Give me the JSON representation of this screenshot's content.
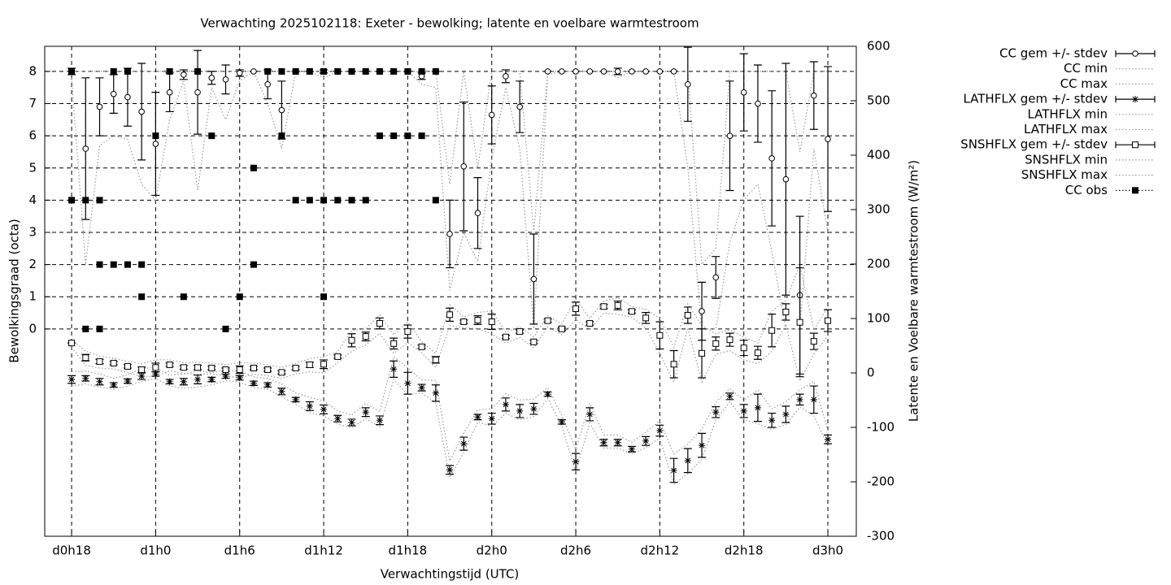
{
  "chart_data": {
    "type": "errorbar",
    "title": "Verwachting 2025102118: Exeter - bewolking; latente en voelbare warmtestroom",
    "x_label": "Verwachtingstijd (UTC)",
    "y_label": "Bewolkingsgraad (octa)",
    "y2_label": "Latente en Voelbare warmtestroom (W/m²)",
    "xlim": [
      16.08,
      74.03
    ],
    "ylim": [
      -6.44,
      8.78
    ],
    "y2lim": [
      -300,
      600
    ],
    "xticks": [
      {
        "value": 18,
        "label": "d0h18"
      },
      {
        "value": 24,
        "label": "d1h0"
      },
      {
        "value": 30,
        "label": "d1h6"
      },
      {
        "value": 36,
        "label": "d1h12"
      },
      {
        "value": 42,
        "label": "d1h18"
      },
      {
        "value": 48,
        "label": "d2h0"
      },
      {
        "value": 54,
        "label": "d2h6"
      },
      {
        "value": 60,
        "label": "d2h12"
      },
      {
        "value": 66,
        "label": "d2h18"
      },
      {
        "value": 72,
        "label": "d3h0"
      }
    ],
    "yticks": [
      0,
      1,
      2,
      3,
      4,
      5,
      6,
      7,
      8
    ],
    "y2ticks": [
      -300,
      -200,
      -100,
      0,
      100,
      200,
      300,
      400,
      500,
      600
    ],
    "grid": true,
    "legend": "outside-right",
    "x": [
      18,
      19,
      20,
      21,
      22,
      23,
      24,
      25,
      26,
      27,
      28,
      29,
      30,
      31,
      32,
      33,
      34,
      35,
      36,
      37,
      38,
      39,
      40,
      41,
      42,
      43,
      44,
      45,
      46,
      47,
      48,
      49,
      50,
      51,
      52,
      53,
      54,
      55,
      56,
      57,
      58,
      59,
      60,
      61,
      62,
      63,
      64,
      65,
      66,
      67,
      68,
      69,
      70,
      71,
      72
    ],
    "series": [
      {
        "name": "CC gem +/- stdev",
        "axis": "y",
        "style": "errorbars",
        "marker": "circle",
        "color": "#000000",
        "values": [
          8,
          5.6,
          6.9,
          7.3,
          7.2,
          6.75,
          5.75,
          7.35,
          7.9,
          7.35,
          7.8,
          7.75,
          7.95,
          8,
          7.6,
          6.8,
          8,
          8,
          8,
          8,
          8,
          8,
          8,
          8,
          8,
          7.85,
          8,
          2.95,
          5.05,
          3.6,
          6.65,
          7.85,
          6.9,
          1.55,
          8,
          8,
          8,
          8,
          8,
          8,
          8,
          8,
          8,
          8,
          7.6,
          0.55,
          1.6,
          6,
          7.35,
          7,
          5.3,
          4.65,
          1.05,
          7.25,
          5.9
        ],
        "errors": [
          0.1,
          2.2,
          0.9,
          0.6,
          0.9,
          1.5,
          1.6,
          0.6,
          0.15,
          1.3,
          0.2,
          0.45,
          0.1,
          0,
          0.45,
          0.9,
          0,
          0,
          0.05,
          0,
          0,
          0,
          0,
          0,
          0,
          0.1,
          0,
          1.05,
          2,
          1.1,
          0.9,
          0.2,
          0.8,
          1.4,
          0,
          0,
          0,
          0,
          0,
          0.1,
          0,
          0,
          0,
          0,
          1.15,
          0.9,
          0.65,
          1.7,
          1.2,
          1.2,
          2.1,
          3.6,
          2.45,
          1.05,
          2.25
        ]
      },
      {
        "name": "CC min",
        "axis": "y",
        "style": "line",
        "marker": "none",
        "color": "#9a9a9a",
        "values": [
          7.8,
          2,
          5.7,
          6,
          5.9,
          4.5,
          4,
          6.5,
          7.7,
          4.3,
          7.5,
          6.5,
          7.7,
          8,
          7,
          5.6,
          8,
          8,
          7.8,
          8,
          8,
          8,
          8,
          8,
          8,
          7.6,
          7.5,
          1.2,
          3,
          2.1,
          5.3,
          7.5,
          5.6,
          0,
          7.9,
          8,
          8,
          8,
          8,
          7.8,
          8,
          8,
          8,
          8,
          5,
          0,
          0,
          2.7,
          4,
          4.5,
          2.4,
          0,
          0,
          5.6,
          3
        ]
      },
      {
        "name": "CC max",
        "axis": "y",
        "style": "line",
        "marker": "none",
        "color": "#9a9a9a",
        "values": [
          8,
          8,
          8,
          8,
          8,
          8,
          8,
          8,
          8,
          8,
          8,
          8,
          8,
          8,
          8,
          8,
          8,
          8,
          8,
          8,
          8,
          8,
          8,
          8,
          8,
          8,
          8,
          4.5,
          8,
          5,
          8,
          8,
          8,
          3,
          8,
          8,
          8,
          8,
          8,
          8,
          8,
          8,
          8,
          8,
          8,
          2,
          2.5,
          8,
          8,
          8,
          8,
          8,
          5.5,
          8,
          8
        ]
      },
      {
        "name": "LATHFLX gem +/- stdev",
        "axis": "y2",
        "style": "errorbars",
        "marker": "star",
        "color": "#000000",
        "values": [
          -12,
          -10,
          -16,
          -22,
          -15,
          -6,
          -2,
          -16,
          -16,
          -12,
          -12,
          -6,
          -9,
          -19,
          -22,
          -34,
          -49,
          -61,
          -67,
          -84,
          -91,
          -72,
          -87,
          7,
          -19,
          -27,
          -37,
          -178,
          -130,
          -81,
          -84,
          -58,
          -70,
          -66,
          -39,
          -90,
          -163,
          -76,
          -128,
          -128,
          -140,
          -125,
          -106,
          -179,
          -161,
          -133,
          -72,
          -43,
          -70,
          -64,
          -87,
          -76,
          -49,
          -49,
          -122
        ],
        "errors": [
          7,
          5,
          6,
          4,
          4,
          6,
          4,
          4,
          6,
          8,
          4,
          4,
          4,
          4,
          4,
          6,
          4,
          8,
          8,
          6,
          6,
          8,
          8,
          15,
          20,
          6,
          15,
          8,
          12,
          5,
          10,
          12,
          12,
          10,
          4,
          4,
          15,
          12,
          6,
          6,
          5,
          8,
          10,
          22,
          22,
          22,
          10,
          6,
          12,
          25,
          13,
          15,
          10,
          25,
          8
        ]
      },
      {
        "name": "LATHFLX min",
        "axis": "y2",
        "style": "line",
        "marker": "none",
        "color": "#9a9a9a",
        "values": [
          -24,
          -20,
          -26,
          -30,
          -24,
          -16,
          -10,
          -24,
          -28,
          -26,
          -22,
          -14,
          -17,
          -27,
          -30,
          -44,
          -57,
          -73,
          -79,
          -94,
          -101,
          -84,
          -99,
          -12,
          -40,
          -37,
          -55,
          -192,
          -146,
          -90,
          -98,
          -74,
          -86,
          -80,
          -47,
          -98,
          -182,
          -92,
          -138,
          -138,
          -149,
          -137,
          -120,
          -205,
          -185,
          -159,
          -86,
          -53,
          -86,
          -93,
          -104,
          -95,
          -63,
          -78,
          -134
        ]
      },
      {
        "name": "LATHFLX max",
        "axis": "y2",
        "style": "line",
        "marker": "none",
        "color": "#9a9a9a",
        "values": [
          3,
          3,
          -2,
          -10,
          -3,
          8,
          10,
          -4,
          -2,
          4,
          0,
          6,
          3,
          -7,
          -10,
          -20,
          -37,
          -45,
          -51,
          -70,
          -77,
          -56,
          -71,
          30,
          9,
          -13,
          -14,
          -162,
          -110,
          -68,
          -66,
          -38,
          -50,
          -48,
          -27,
          -78,
          -140,
          -56,
          -114,
          -114,
          -127,
          -109,
          -88,
          -149,
          -131,
          -103,
          -54,
          -29,
          -50,
          -31,
          -66,
          -53,
          -31,
          -16,
          -106
        ]
      },
      {
        "name": "SNSHFLX gem +/- stdev",
        "axis": "y2",
        "style": "errorbars",
        "marker": "square",
        "color": "#000000",
        "values": [
          55,
          28,
          21,
          18,
          12,
          6,
          10,
          15,
          10,
          10,
          9,
          6,
          6,
          9,
          6,
          1,
          9,
          15,
          16,
          30,
          60,
          67,
          91,
          54,
          76,
          48,
          24,
          107,
          94,
          97,
          94,
          66,
          76,
          57,
          96,
          81,
          118,
          91,
          122,
          124,
          113,
          101,
          69,
          16,
          106,
          36,
          54,
          61,
          46,
          37,
          78,
          112,
          93,
          58,
          96
        ],
        "errors": [
          0,
          6,
          4,
          3,
          3,
          5,
          8,
          3,
          3,
          4,
          3,
          3,
          7,
          3,
          3,
          3,
          3,
          5,
          8,
          3,
          12,
          8,
          10,
          10,
          12,
          3,
          6,
          12,
          3,
          8,
          14,
          3,
          3,
          3,
          3,
          3,
          12,
          3,
          4,
          8,
          3,
          10,
          25,
          25,
          15,
          45,
          12,
          12,
          14,
          12,
          30,
          15,
          100,
          15,
          20
        ]
      },
      {
        "name": "SNSHFLX min",
        "axis": "y2",
        "style": "line",
        "marker": "none",
        "color": "#9a9a9a",
        "values": [
          47,
          14,
          9,
          7,
          1,
          -7,
          -6,
          4,
          -1,
          -2,
          -2,
          -5,
          -9,
          -2,
          -5,
          -10,
          -2,
          2,
          0,
          19,
          40,
          51,
          73,
          36,
          56,
          37,
          10,
          87,
          83,
          81,
          72,
          55,
          65,
          46,
          85,
          70,
          98,
          80,
          110,
          108,
          102,
          83,
          36,
          -17,
          83,
          -17,
          34,
          41,
          24,
          17,
          40,
          89,
          -15,
          35,
          68
        ]
      },
      {
        "name": "SNSHFLX max",
        "axis": "y2",
        "style": "line",
        "marker": "none",
        "color": "#9a9a9a",
        "values": [
          61,
          40,
          31,
          27,
          21,
          17,
          24,
          24,
          19,
          20,
          18,
          15,
          19,
          18,
          15,
          10,
          18,
          26,
          30,
          39,
          78,
          81,
          107,
          70,
          94,
          57,
          36,
          125,
          103,
          111,
          114,
          75,
          85,
          66,
          105,
          90,
          136,
          100,
          132,
          138,
          122,
          117,
          100,
          47,
          127,
          87,
          72,
          79,
          66,
          55,
          114,
          133,
          199,
          79,
          122
        ]
      },
      {
        "name": "CC obs",
        "axis": "y",
        "style": "points",
        "marker": "filled-square",
        "color": "#000000",
        "x": [
          18,
          18,
          19,
          19,
          20,
          20,
          20,
          21,
          21,
          22,
          22,
          23,
          23,
          24,
          25,
          26,
          27,
          28,
          29,
          30,
          31,
          31,
          32,
          33,
          33,
          34,
          34,
          35,
          35,
          36,
          36,
          36,
          37,
          37,
          38,
          38,
          39,
          39,
          40,
          40,
          41,
          41,
          42,
          42,
          43,
          43,
          44,
          44
        ],
        "values": [
          8,
          4,
          4,
          0,
          4,
          2,
          0,
          8,
          2,
          8,
          2,
          2,
          1,
          6,
          8,
          1,
          8,
          6,
          0,
          1,
          5,
          2,
          8,
          8,
          6,
          8,
          4,
          8,
          4,
          8,
          4,
          1,
          8,
          4,
          8,
          4,
          8,
          4,
          8,
          6,
          8,
          6,
          8,
          6,
          8,
          6,
          8,
          4
        ]
      }
    ]
  }
}
